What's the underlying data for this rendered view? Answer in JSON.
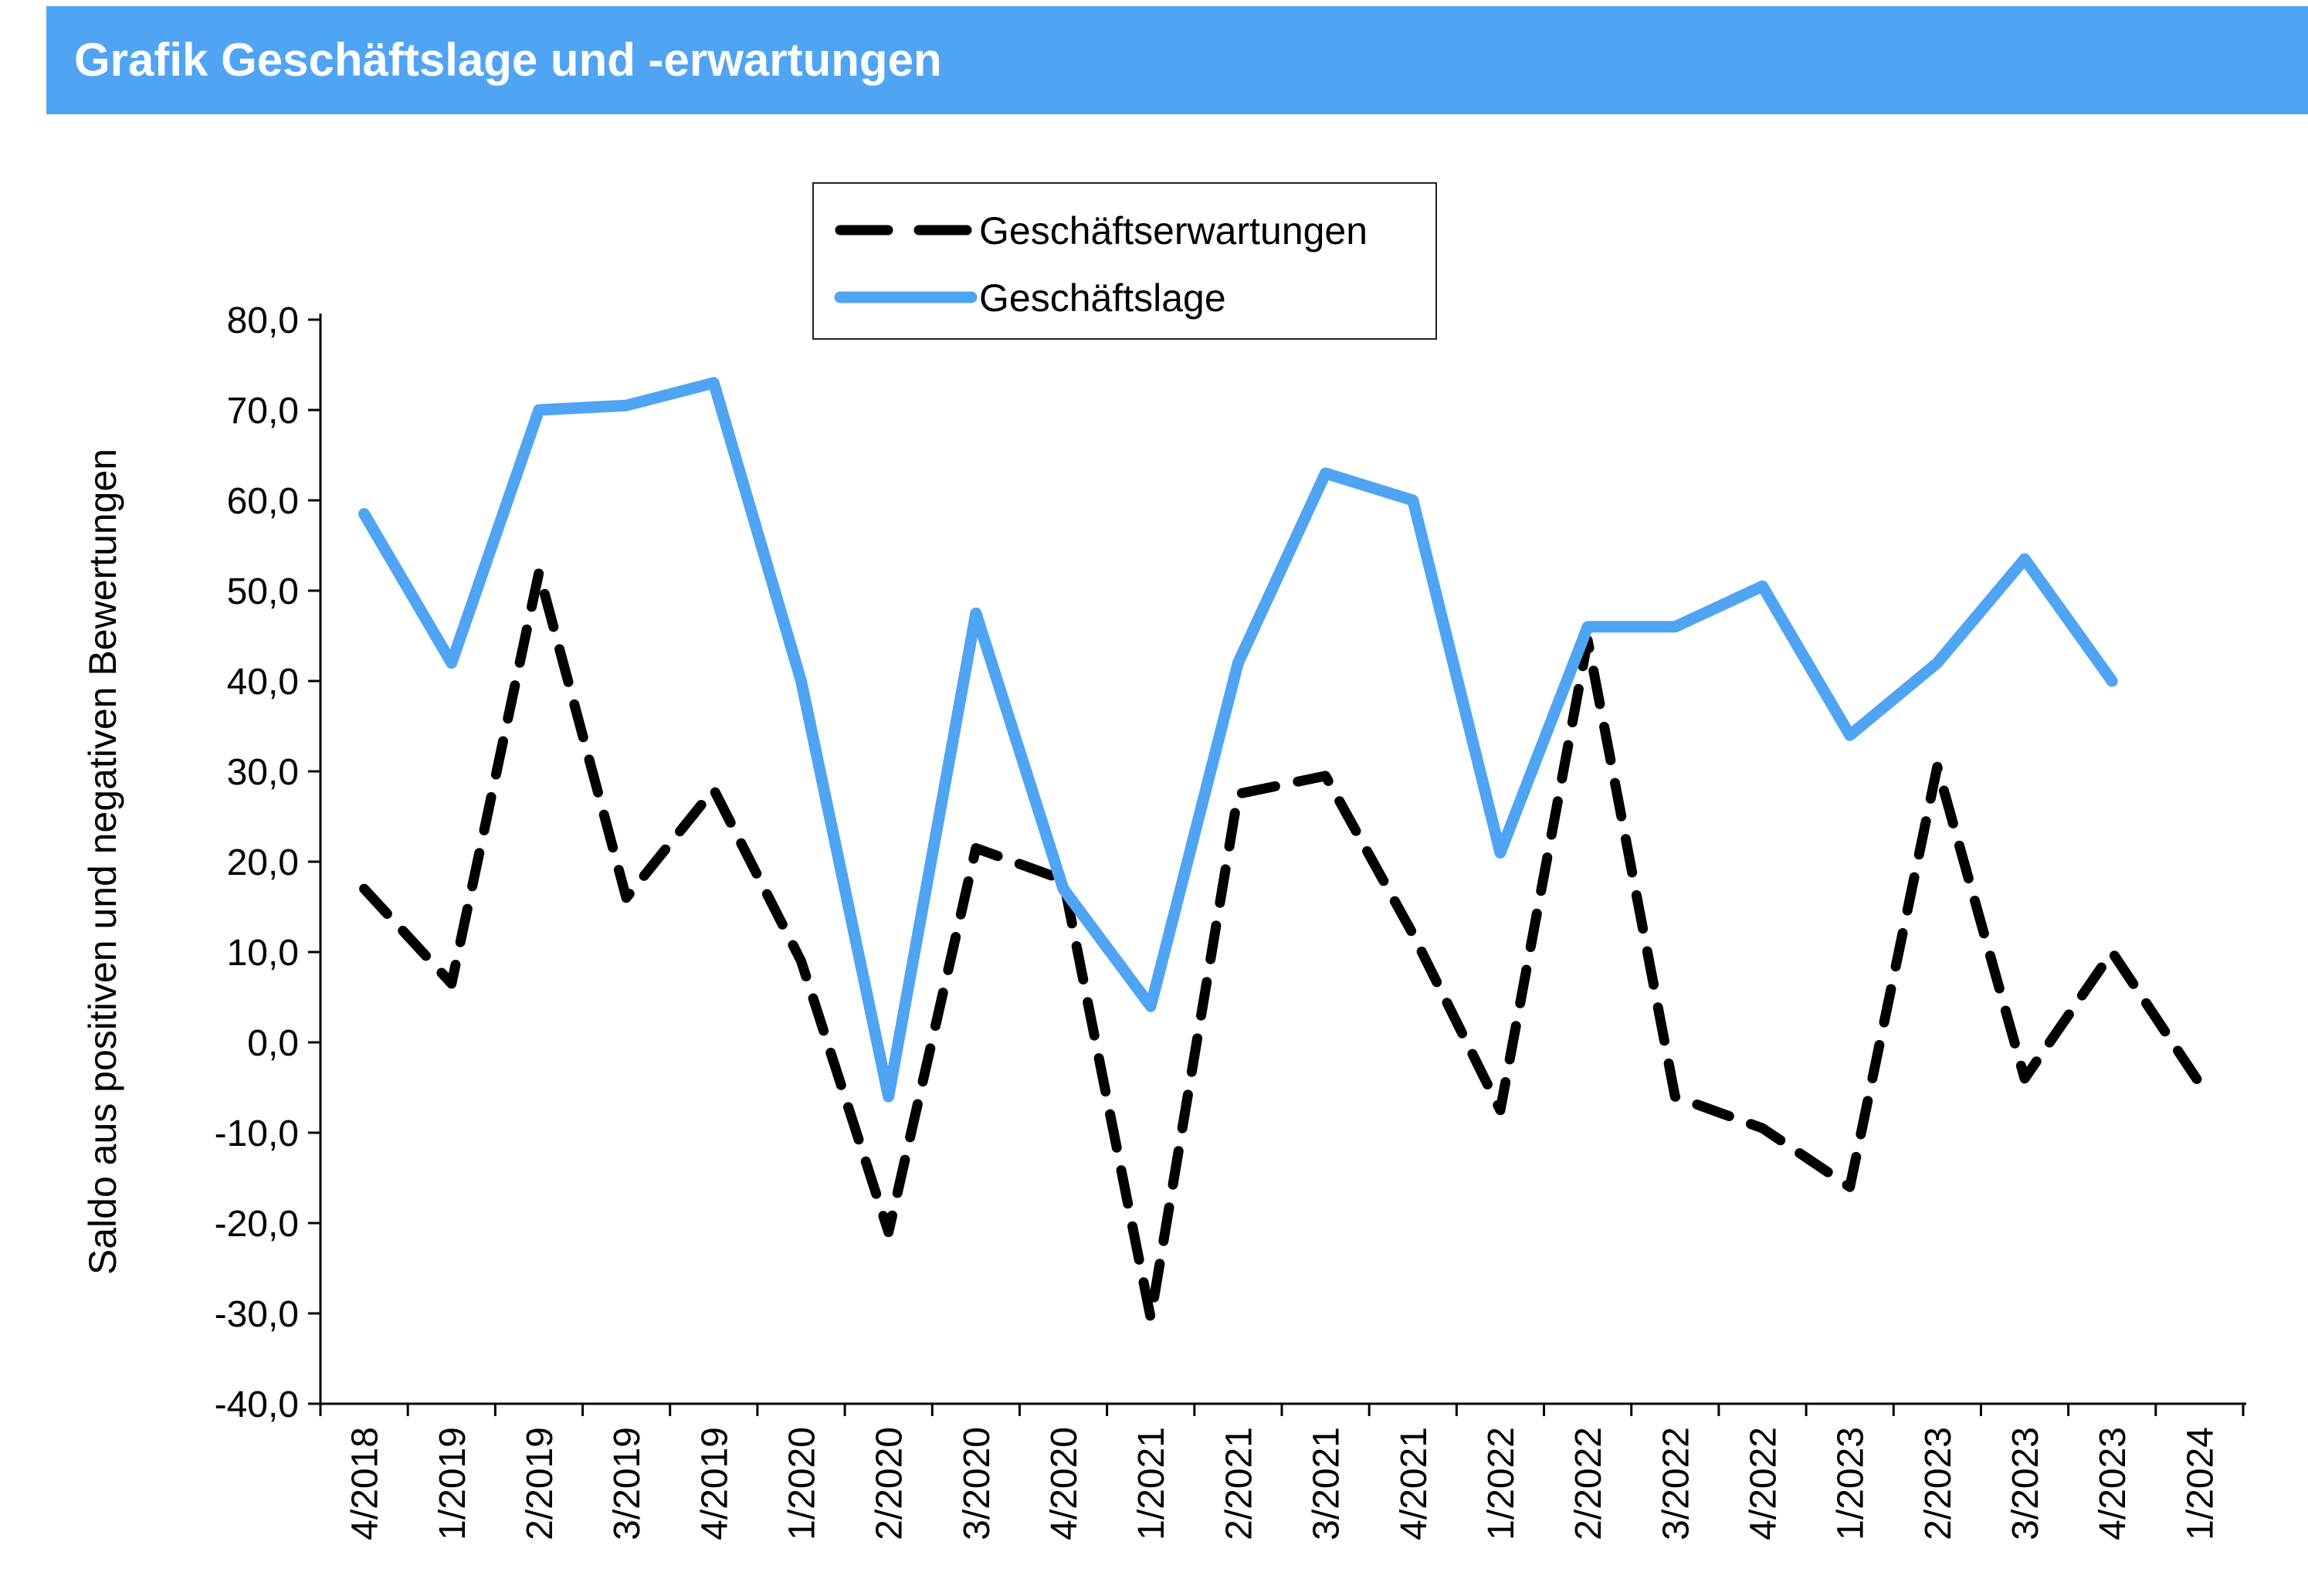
{
  "header": {
    "title": "Grafik Geschäftslage und -erwartungen",
    "bg_color": "#4FA4F3",
    "text_color": "#ffffff"
  },
  "legend": {
    "entries": [
      {
        "label": "Geschäftserwartungen",
        "style": "dashed",
        "color": "#000000"
      },
      {
        "label": "Geschäftslage",
        "style": "solid",
        "color": "#4FA4F3"
      }
    ]
  },
  "chart_data": {
    "type": "line",
    "title": "Grafik Geschäftslage und -erwartungen",
    "categories": [
      "4/2018",
      "1/2019",
      "2/2019",
      "3/2019",
      "4/2019",
      "1/2020",
      "2/2020",
      "3/2020",
      "4/2020",
      "1/2021",
      "2/2021",
      "3/2021",
      "4/2021",
      "1/2022",
      "2/2022",
      "3/2022",
      "4/2022",
      "1/2023",
      "2/2023",
      "3/2023",
      "4/2023",
      "1/2024"
    ],
    "series": [
      {
        "name": "Geschäftserwartungen",
        "style": "dashed",
        "color": "#000000",
        "values": [
          17,
          6.5,
          52,
          16,
          28,
          9,
          -21,
          21.5,
          18,
          -30.5,
          27.5,
          29.5,
          12,
          -7.5,
          44.5,
          -6,
          -9.5,
          -16,
          30.5,
          -4,
          10,
          -4.5
        ]
      },
      {
        "name": "Geschäftslage",
        "style": "solid",
        "color": "#4FA4F3",
        "values": [
          58.5,
          42,
          70,
          70.5,
          73,
          40,
          -6,
          47.5,
          17,
          4,
          42,
          63,
          60,
          21,
          46,
          46,
          50.5,
          34,
          42,
          53.5,
          40,
          null
        ]
      }
    ],
    "xlabel": "",
    "ylabel": "Saldo aus positiven und negativen Bewertungen",
    "ylim": [
      -40,
      80
    ],
    "ytick_step": 10,
    "ytick_labels": [
      "80,0",
      "70,0",
      "60,0",
      "50,0",
      "40,0",
      "30,0",
      "20,0",
      "10,0",
      "0,0",
      "-10,0",
      "-20,0",
      "-30,0",
      "-40,0"
    ],
    "grid": false,
    "legend_position": "top-center"
  }
}
